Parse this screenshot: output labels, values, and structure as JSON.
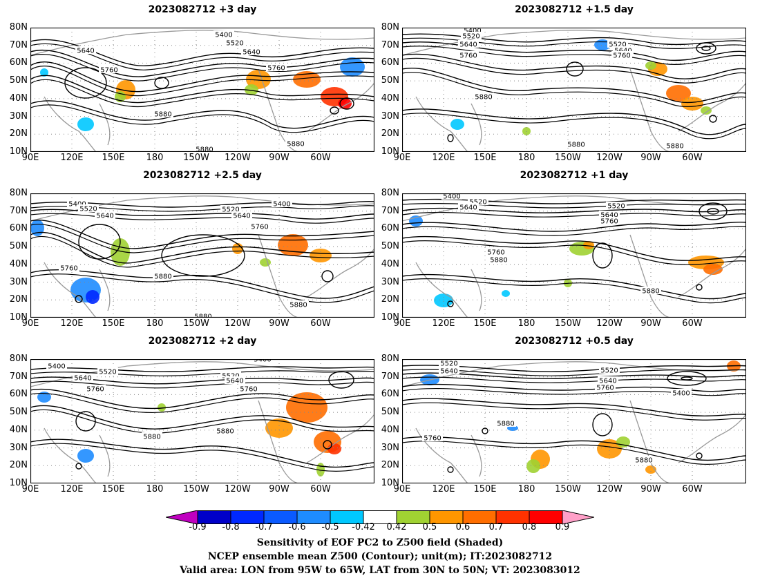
{
  "panels": [
    {
      "title": "2023082712 +3 day"
    },
    {
      "title": "2023082712 +1.5 day"
    },
    {
      "title": "2023082712 +2.5 day"
    },
    {
      "title": "2023082712 +1 day"
    },
    {
      "title": "2023082712 +2 day"
    },
    {
      "title": "2023082712 +0.5 day"
    }
  ],
  "lat_ticks": [
    "80N",
    "70N",
    "60N",
    "50N",
    "40N",
    "30N",
    "20N",
    "10N"
  ],
  "lon_ticks": [
    "90E",
    "120E",
    "150E",
    "180",
    "150W",
    "120W",
    "90W",
    "60W"
  ],
  "contour_labels": [
    "5400",
    "5520",
    "5640",
    "5760",
    "5880"
  ],
  "colorbar": {
    "labels": [
      "-0.9",
      "-0.8",
      "-0.7",
      "-0.6",
      "-0.5",
      "-0.42",
      "0.42",
      "0.5",
      "0.6",
      "0.7",
      "0.8",
      "0.9"
    ],
    "colors": [
      "#c000c0",
      "#0000c8",
      "#0028ff",
      "#0a5aff",
      "#1e8cff",
      "#00c8ff",
      "#ffffff",
      "#a0d232",
      "#ff9600",
      "#ff6e00",
      "#ff3200",
      "#ff0000",
      "#ffa0c8"
    ]
  },
  "caption": {
    "line1": "Sensitivity of EOF PC2 to Z500 field (Shaded)",
    "line2": "NCEP ensemble mean Z500 (Contour); unit(m); IT:2023082712",
    "line3": "Valid area: LON from 95W to 65W, LAT from 30N to 50N; VT: 2023083012"
  }
}
